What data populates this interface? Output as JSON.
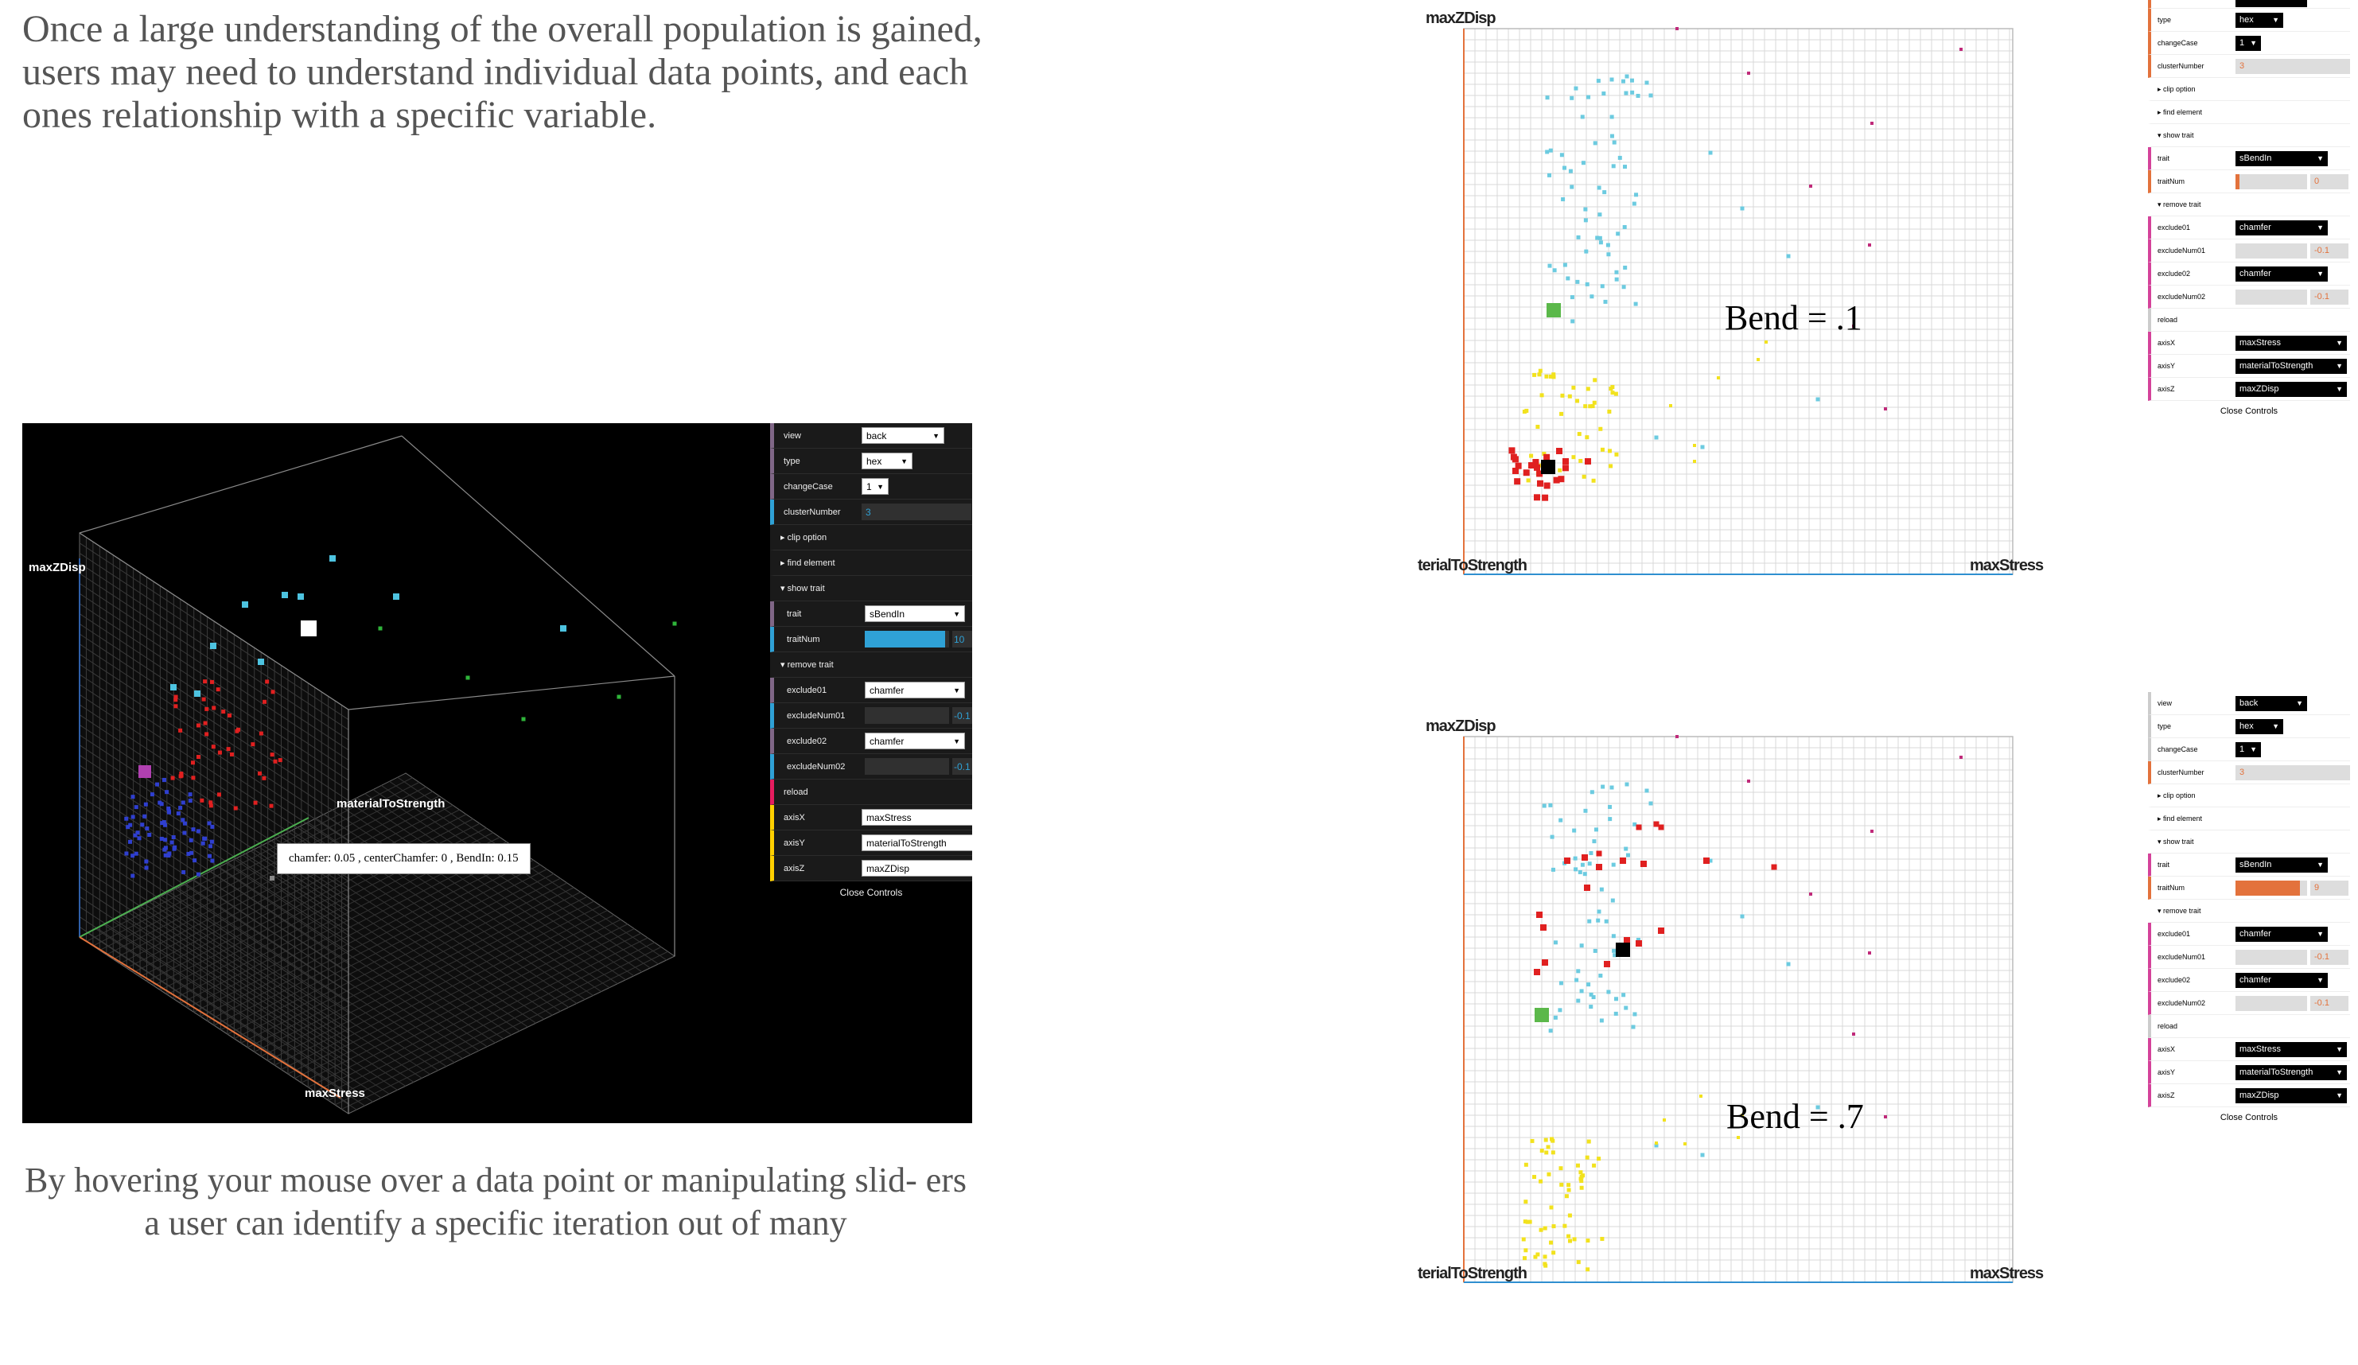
{
  "intro_text": "Once a large understanding of the overall population is gained, users may need to understand individual data points, and each ones relationship with a specific variable.",
  "caption_text": "By hovering your mouse over a data point or manipulating slid- ers a user can identify a specific iteration out of many",
  "viewer3d": {
    "axis_labels": {
      "z": "maxZDisp",
      "y": "materialToStrength",
      "x": "maxStress"
    },
    "tooltip": "chamfer: 0.05 , centerChamfer: 0 , BendIn: 0.15",
    "colors": {
      "background": "#000000",
      "blue": "#2f3fd0",
      "red": "#e02020",
      "cyan": "#4dc3e0",
      "green": "#2fb43a",
      "magenta": "#b040b0"
    }
  },
  "controls_dark": {
    "view": {
      "label": "view",
      "value": "back"
    },
    "type": {
      "label": "type",
      "value": "hex"
    },
    "changeCase": {
      "label": "changeCase",
      "value": "1"
    },
    "clusterNumber": {
      "label": "clusterNumber",
      "value": "3"
    },
    "clip_option": "clip option",
    "find_element": "find element",
    "show_trait": "show trait",
    "trait": {
      "label": "trait",
      "value": "sBendIn"
    },
    "traitNum": {
      "label": "traitNum",
      "value": "10",
      "fraction": 0.95
    },
    "remove_trait": "remove trait",
    "exclude01": {
      "label": "exclude01",
      "value": "chamfer"
    },
    "excludeNum01": {
      "label": "excludeNum01",
      "value": "-0.1"
    },
    "exclude02": {
      "label": "exclude02",
      "value": "chamfer"
    },
    "excludeNum02": {
      "label": "excludeNum02",
      "value": "-0.1"
    },
    "reload": "reload",
    "axisX": {
      "label": "axisX",
      "value": "maxStress"
    },
    "axisY": {
      "label": "axisY",
      "value": "materialToStrength"
    },
    "axisZ": {
      "label": "axisZ",
      "value": "maxZDisp"
    },
    "close": "Close Controls"
  },
  "plots2d": [
    {
      "bend_label": "Bend =  .1",
      "axis_labels": {
        "z": "maxZDisp",
        "y": "terialToStrength",
        "x": "maxStress"
      },
      "controls": {
        "type": {
          "label": "type",
          "value": "hex"
        },
        "changeCase": {
          "label": "changeCase",
          "value": "1"
        },
        "clusterNumber": {
          "label": "clusterNumber",
          "value": "3"
        },
        "clip_option": "clip option",
        "find_element": "find element",
        "show_trait": "show trait",
        "trait": {
          "label": "trait",
          "value": "sBendIn"
        },
        "traitNum": {
          "label": "traitNum",
          "value": "0",
          "fraction": 0.05
        },
        "remove_trait": "remove trait",
        "exclude01": {
          "label": "exclude01",
          "value": "chamfer"
        },
        "excludeNum01": {
          "label": "excludeNum01",
          "value": "-0.1"
        },
        "exclude02": {
          "label": "exclude02",
          "value": "chamfer"
        },
        "excludeNum02": {
          "label": "excludeNum02",
          "value": "-0.1"
        },
        "reload": "reload",
        "axisX": {
          "label": "axisX",
          "value": "maxStress"
        },
        "axisY": {
          "label": "axisY",
          "value": "materialToStrength"
        },
        "axisZ": {
          "label": "axisZ",
          "value": "maxZDisp"
        },
        "close": "Close Controls"
      }
    },
    {
      "bend_label": "Bend =  .7",
      "axis_labels": {
        "z": "maxZDisp",
        "y": "terialToStrength",
        "x": "maxStress"
      },
      "controls": {
        "view": {
          "label": "view",
          "value": "back"
        },
        "type": {
          "label": "type",
          "value": "hex"
        },
        "changeCase": {
          "label": "changeCase",
          "value": "1"
        },
        "clusterNumber": {
          "label": "clusterNumber",
          "value": "3"
        },
        "clip_option": "clip option",
        "find_element": "find element",
        "show_trait": "show trait",
        "trait": {
          "label": "trait",
          "value": "sBendIn"
        },
        "traitNum": {
          "label": "traitNum",
          "value": "9",
          "fraction": 0.9
        },
        "remove_trait": "remove trait",
        "exclude01": {
          "label": "exclude01",
          "value": "chamfer"
        },
        "excludeNum01": {
          "label": "excludeNum01",
          "value": "-0.1"
        },
        "exclude02": {
          "label": "exclude02",
          "value": "chamfer"
        },
        "excludeNum02": {
          "label": "excludeNum02",
          "value": "-0.1"
        },
        "reload": "reload",
        "axisX": {
          "label": "axisX",
          "value": "maxStress"
        },
        "axisY": {
          "label": "axisY",
          "value": "materialToStrength"
        },
        "axisZ": {
          "label": "axisZ",
          "value": "maxZDisp"
        },
        "close": "Close Controls"
      }
    }
  ],
  "point_colors": {
    "cyan": "#6ccbe0",
    "yellow": "#f2e21e",
    "red": "#e02020",
    "magenta": "#c02a7a",
    "green": "#5bb84a",
    "black": "#000000",
    "grid": "#d8d8d8"
  }
}
